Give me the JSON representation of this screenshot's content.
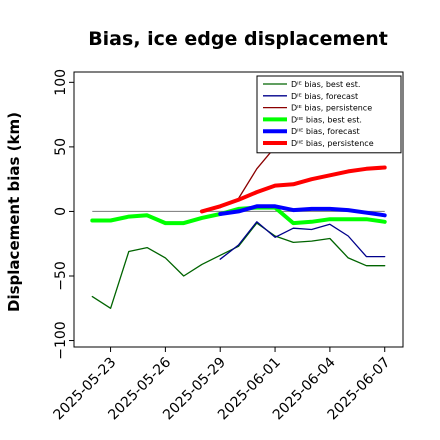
{
  "chart_data": {
    "type": "line",
    "title": "Bias, ice edge displacement",
    "xlabel": "",
    "ylabel": "Displacement bias (km)",
    "xlim": [
      "2025-05-21",
      "2025-06-08"
    ],
    "ylim": [
      -105,
      108
    ],
    "yticks": [
      -100,
      -50,
      0,
      50,
      100
    ],
    "ytick_labels": [
      "−100",
      "−50",
      "0",
      "50",
      "100"
    ],
    "xticks": [
      "2025-05-23",
      "2025-05-26",
      "2025-05-29",
      "2025-06-01",
      "2025-06-04",
      "2025-06-07"
    ],
    "xtick_labels": [
      "2025-05-23",
      "2025-05-26",
      "2025-05-29",
      "2025-06-01",
      "2025-06-04",
      "2025-06-07"
    ],
    "highlight_xtick": "2025-05-29",
    "highlight_color": "#228B22",
    "zero_line": true,
    "grid": false,
    "legend_position": "top-right",
    "series": [
      {
        "name": "Dᴵᴱ bias, best est.",
        "color": "#006400",
        "width": 1.3,
        "x": [
          "2025-05-22",
          "2025-05-23",
          "2025-05-24",
          "2025-05-25",
          "2025-05-26",
          "2025-05-27",
          "2025-05-28",
          "2025-05-29",
          "2025-05-30",
          "2025-05-31",
          "2025-06-01",
          "2025-06-02",
          "2025-06-03",
          "2025-06-04",
          "2025-06-05",
          "2025-06-06",
          "2025-06-07"
        ],
        "y": [
          -66,
          -75,
          -31,
          -28,
          -36,
          -50,
          -41,
          -34,
          -27,
          -9,
          -19,
          -24,
          -23,
          -21,
          -36,
          -42,
          -42
        ]
      },
      {
        "name": "Dᴵᴱ bias, forecast",
        "color": "#00008B",
        "width": 1.3,
        "x": [
          "2025-05-29",
          "2025-05-30",
          "2025-05-31",
          "2025-06-01",
          "2025-06-02",
          "2025-06-03",
          "2025-06-04",
          "2025-06-05",
          "2025-06-06",
          "2025-06-07"
        ],
        "y": [
          -37,
          -26,
          -8,
          -20,
          -13,
          -14,
          -10,
          -19,
          -35,
          -35
        ]
      },
      {
        "name": "Dᴵᴱ bias, persistence",
        "color": "#8B0000",
        "width": 1.3,
        "x": [
          "2025-05-28",
          "2025-05-29",
          "2025-05-30",
          "2025-05-31",
          "2025-06-01"
        ],
        "y": [
          0,
          3,
          10,
          33,
          50
        ]
      },
      {
        "name": "Dᴵᴵᴱ bias, best est.",
        "color": "#00FF00",
        "width": 4,
        "x": [
          "2025-05-22",
          "2025-05-23",
          "2025-05-24",
          "2025-05-25",
          "2025-05-26",
          "2025-05-27",
          "2025-05-28",
          "2025-05-29",
          "2025-05-30",
          "2025-05-31",
          "2025-06-01",
          "2025-06-02",
          "2025-06-03",
          "2025-06-04",
          "2025-06-05",
          "2025-06-06",
          "2025-06-07"
        ],
        "y": [
          -7,
          -7,
          -4,
          -3,
          -9,
          -9,
          -5,
          -2,
          2,
          3,
          3,
          -9,
          -8,
          -6,
          -6,
          -6,
          -8
        ]
      },
      {
        "name": "Dᴵᴵᴱ bias, forecast",
        "color": "#0000FF",
        "width": 4,
        "x": [
          "2025-05-29",
          "2025-05-30",
          "2025-05-31",
          "2025-06-01",
          "2025-06-02",
          "2025-06-03",
          "2025-06-04",
          "2025-06-05",
          "2025-06-06",
          "2025-06-07"
        ],
        "y": [
          -2,
          0,
          4,
          4,
          1,
          2,
          2,
          1,
          -1,
          -3
        ]
      },
      {
        "name": "Dᴵᴵᴱ bias, persistence",
        "color": "#FF0000",
        "width": 4,
        "x": [
          "2025-05-28",
          "2025-05-29",
          "2025-05-30",
          "2025-05-31",
          "2025-06-01",
          "2025-06-02",
          "2025-06-03",
          "2025-06-04",
          "2025-06-05",
          "2025-06-06",
          "2025-06-07"
        ],
        "y": [
          0,
          4,
          9,
          15,
          20,
          21,
          25,
          28,
          31,
          33,
          34
        ]
      }
    ]
  }
}
